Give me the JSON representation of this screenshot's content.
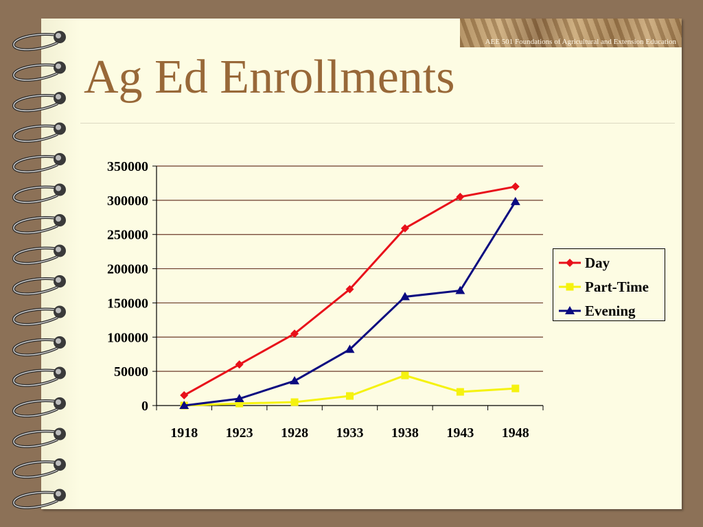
{
  "slide": {
    "title": "Ag Ed Enrollments",
    "banner_text": "AEE 501 Foundations of Agricultural and Extension Education"
  },
  "colors": {
    "background": "#8c7157",
    "page": "#fdfce3",
    "title": "#986838",
    "gridline": "#6b3a2a"
  },
  "chart_data": {
    "type": "line",
    "title": "",
    "xlabel": "",
    "ylabel": "",
    "categories": [
      "1918",
      "1923",
      "1928",
      "1933",
      "1938",
      "1943",
      "1948"
    ],
    "ylim": [
      0,
      350000
    ],
    "yticks": [
      "0",
      "50000",
      "100000",
      "150000",
      "200000",
      "250000",
      "300000",
      "350000"
    ],
    "grid": true,
    "legend_position": "right",
    "series": [
      {
        "name": "Day",
        "color": "#e8101a",
        "marker": "diamond",
        "values": [
          15000,
          60000,
          105000,
          170000,
          259000,
          305000,
          320000
        ]
      },
      {
        "name": "Part-Time",
        "color": "#f5f20f",
        "marker": "square",
        "values": [
          0,
          3000,
          5000,
          14000,
          44000,
          20000,
          25000
        ]
      },
      {
        "name": "Evening",
        "color": "#0a0a80",
        "marker": "triangle",
        "values": [
          0,
          10000,
          36000,
          82000,
          159000,
          168000,
          298000
        ]
      }
    ]
  }
}
